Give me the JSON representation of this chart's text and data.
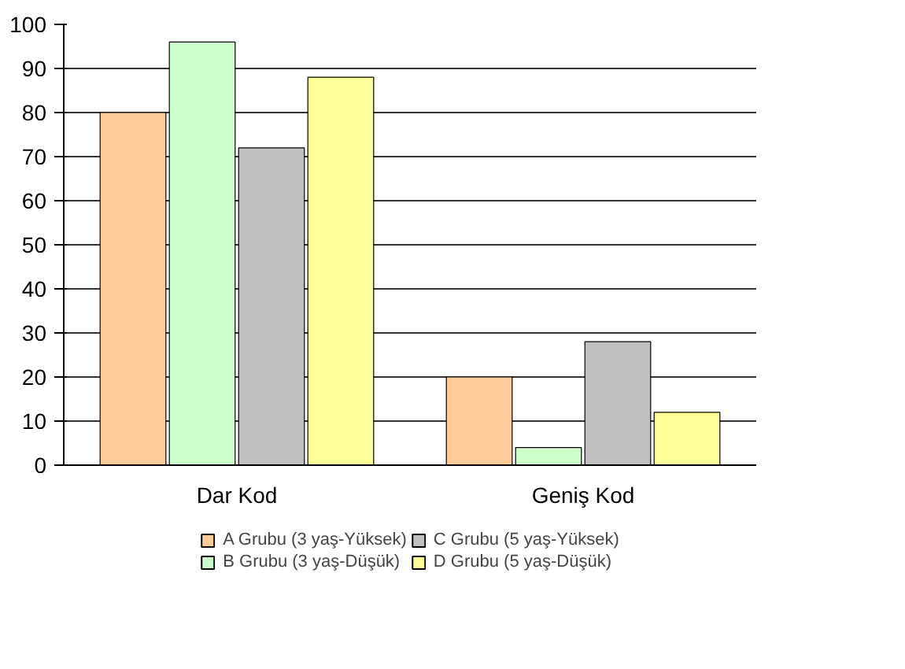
{
  "chart_data": {
    "type": "bar",
    "categories": [
      "Dar Kod",
      "Geniş Kod"
    ],
    "series": [
      {
        "name": "A Grubu (3 yaş-Yüksek)",
        "color": "#ffcc99",
        "values": [
          80,
          20
        ]
      },
      {
        "name": "B Grubu (3 yaş-Düşük)",
        "color": "#ccffcc",
        "values": [
          96,
          4
        ]
      },
      {
        "name": "C Grubu (5 yaş-Yüksek)",
        "color": "#c0c0c0",
        "values": [
          72,
          28
        ]
      },
      {
        "name": "D Grubu (5 yaş-Düşük)",
        "color": "#ffff99",
        "values": [
          88,
          12
        ]
      }
    ],
    "ylim": [
      0,
      100
    ],
    "yticks": [
      0,
      10,
      20,
      30,
      40,
      50,
      60,
      70,
      80,
      90,
      100
    ],
    "grid": "y",
    "legend": "bottom"
  }
}
